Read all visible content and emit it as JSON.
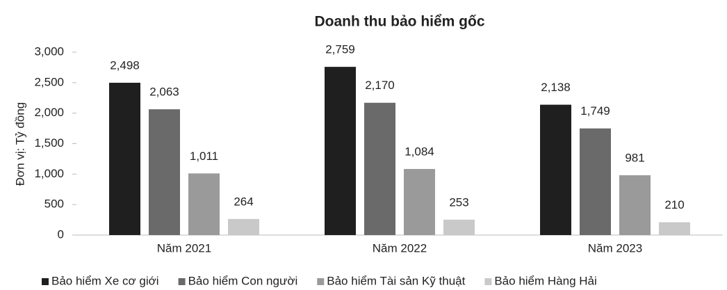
{
  "chart_data": {
    "type": "bar",
    "title": "Doanh thu bảo hiểm gốc",
    "y_label": "Đơn vị: Tỷ đồng",
    "categories": [
      "Năm 2021",
      "Năm 2022",
      "Năm 2023"
    ],
    "series": [
      {
        "name": "Bảo hiểm Xe cơ giới",
        "color": "#1f1f1f",
        "values": [
          2498,
          2759,
          2138
        ],
        "value_labels": [
          "2,498",
          "2,759",
          "2,138"
        ]
      },
      {
        "name": "Bảo hiểm Con người",
        "color": "#6a6a6a",
        "values": [
          2063,
          2170,
          1749
        ],
        "value_labels": [
          "2,063",
          "2,170",
          "1,749"
        ]
      },
      {
        "name": "Bảo hiểm Tài sản Kỹ thuật",
        "color": "#9a9a9a",
        "values": [
          1011,
          1084,
          981
        ],
        "value_labels": [
          "1,011",
          "1,084",
          "981"
        ]
      },
      {
        "name": "Bảo hiểm Hàng Hải",
        "color": "#c9c9c9",
        "values": [
          264,
          253,
          210
        ]
      }
    ],
    "ylim": [
      0,
      3000
    ],
    "yticks": [
      0,
      500,
      {
        "value": 1000,
        "label": "1,000"
      },
      {
        "value": 1500,
        "label": "1,500"
      },
      {
        "value": 2000,
        "label": "2,000"
      },
      {
        "value": 2500,
        "label": "2,500"
      },
      {
        "value": 3000,
        "label": "3,000"
      }
    ],
    "grid": false,
    "legend": "bottom"
  }
}
